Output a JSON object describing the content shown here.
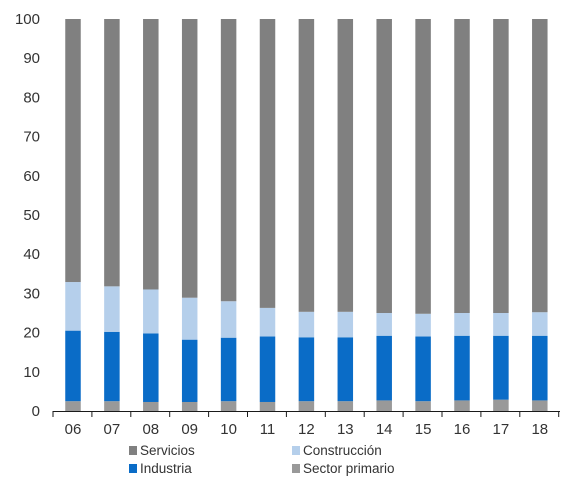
{
  "chart_data": {
    "type": "bar",
    "stacked": true,
    "categories": [
      "06",
      "07",
      "08",
      "09",
      "10",
      "11",
      "12",
      "13",
      "14",
      "15",
      "16",
      "17",
      "18"
    ],
    "series": [
      {
        "name": "Sector primario",
        "color": "#999999",
        "values": [
          2.5,
          2.5,
          2.3,
          2.3,
          2.5,
          2.3,
          2.5,
          2.5,
          2.7,
          2.5,
          2.7,
          2.9,
          2.7
        ]
      },
      {
        "name": "Industria",
        "color": "#0a6cc7",
        "values": [
          18.0,
          17.7,
          17.5,
          15.9,
          16.2,
          16.7,
          16.3,
          16.3,
          16.5,
          16.5,
          16.5,
          16.3,
          16.5
        ]
      },
      {
        "name": "Construcción",
        "color": "#b5cfeb",
        "values": [
          12.4,
          11.6,
          11.2,
          10.7,
          9.3,
          7.3,
          6.5,
          6.5,
          5.8,
          5.8,
          5.8,
          5.8,
          6.0
        ]
      },
      {
        "name": "Servicios",
        "color": "#808080",
        "values": [
          67.1,
          68.2,
          69.0,
          71.1,
          72.0,
          73.7,
          74.7,
          74.7,
          75.0,
          75.2,
          75.0,
          75.0,
          74.8
        ]
      }
    ],
    "ylim": [
      0,
      100
    ],
    "yticks": [
      0,
      10,
      20,
      30,
      40,
      50,
      60,
      70,
      80,
      90,
      100
    ],
    "grid": false,
    "legend": {
      "placement": "bottom",
      "order": [
        "Servicios",
        "Construcción",
        "Industria",
        "Sector primario"
      ]
    }
  }
}
